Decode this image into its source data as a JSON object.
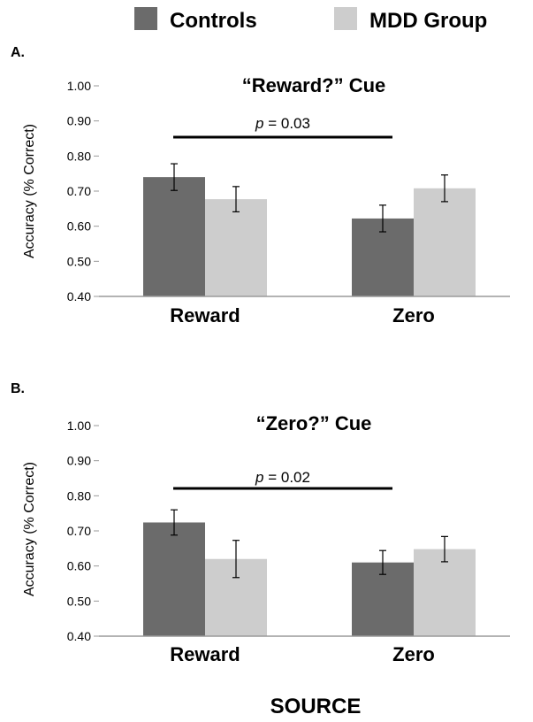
{
  "legend": {
    "placement": "top",
    "items": [
      {
        "label": "Controls",
        "color": "#6b6b6b"
      },
      {
        "label": "MDD Group",
        "color": "#cdcdcd"
      }
    ]
  },
  "xlabel": "SOURCE",
  "chart_data": [
    {
      "type": "bar",
      "panel_label": "A.",
      "title": "“Reward?” Cue",
      "ylabel": "Accuracy (% Correct)",
      "ylim": [
        0.4,
        1.0
      ],
      "yticks": [
        "0.40",
        "0.50",
        "0.60",
        "0.70",
        "0.80",
        "0.90",
        "1.00"
      ],
      "categories": [
        "Reward",
        "Zero"
      ],
      "series": [
        {
          "name": "Controls",
          "color": "#6b6b6b",
          "values": [
            0.74,
            0.622
          ],
          "errors": [
            0.038,
            0.038
          ]
        },
        {
          "name": "MDD Group",
          "color": "#cdcdcd",
          "values": [
            0.677,
            0.708
          ],
          "errors": [
            0.036,
            0.038
          ]
        }
      ],
      "annotation": {
        "prefix": "p",
        "text": " = 0.03"
      },
      "grid": false
    },
    {
      "type": "bar",
      "panel_label": "B.",
      "title": "“Zero?” Cue",
      "ylabel": "Accuracy (% Correct)",
      "ylim": [
        0.4,
        1.0
      ],
      "yticks": [
        "0.40",
        "0.50",
        "0.60",
        "0.70",
        "0.80",
        "0.90",
        "1.00"
      ],
      "categories": [
        "Reward",
        "Zero"
      ],
      "series": [
        {
          "name": "Controls",
          "color": "#6b6b6b",
          "values": [
            0.724,
            0.61
          ],
          "errors": [
            0.036,
            0.034
          ]
        },
        {
          "name": "MDD Group",
          "color": "#cdcdcd",
          "values": [
            0.62,
            0.648
          ],
          "errors": [
            0.053,
            0.036
          ]
        }
      ],
      "annotation": {
        "prefix": "p",
        "text": " = 0.02"
      },
      "grid": false
    }
  ]
}
